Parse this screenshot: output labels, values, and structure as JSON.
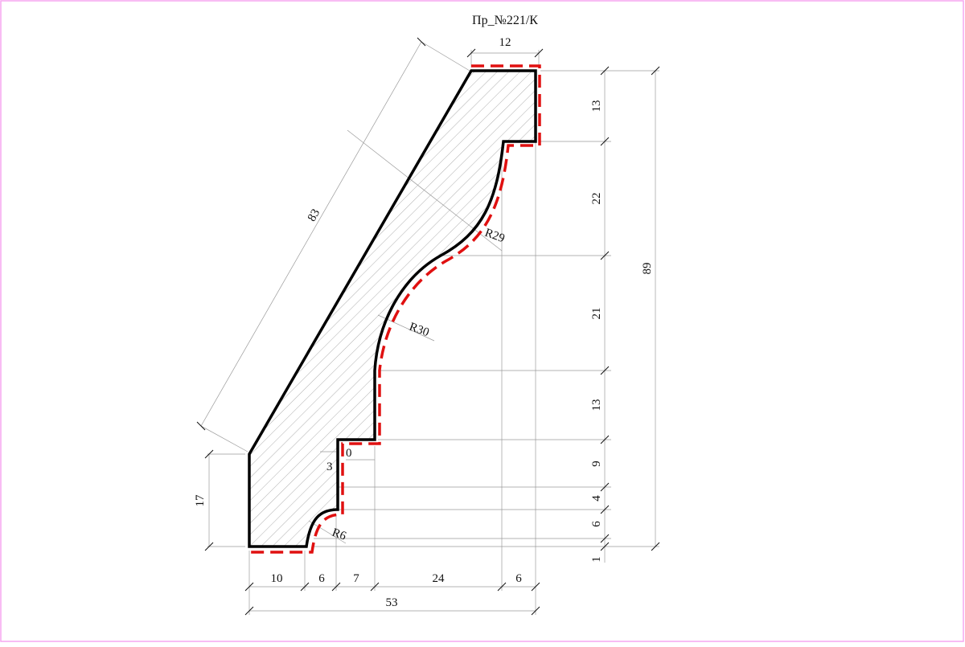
{
  "drawing": {
    "title": "Пр_№221/К",
    "frame_color": "#f5a6f0",
    "profile_outline_color": "#000000",
    "cut_line_color": "#e01010",
    "hatch_color": "#9a9a9a",
    "dimension_line_color": "#9a9a9a"
  },
  "dimensions": {
    "top_width": "12",
    "slant_length": "83",
    "radius_upper": "R29",
    "radius_middle": "R30",
    "radius_lower": "R6",
    "step_depth": "3",
    "step_offset": "0",
    "left_height": "17",
    "bottom_segments": [
      "10",
      "6",
      "7",
      "24",
      "6"
    ],
    "total_width": "53",
    "right_segments": [
      "13",
      "22",
      "21",
      "13",
      "9",
      "4",
      "6",
      "1"
    ],
    "total_height": "89"
  }
}
